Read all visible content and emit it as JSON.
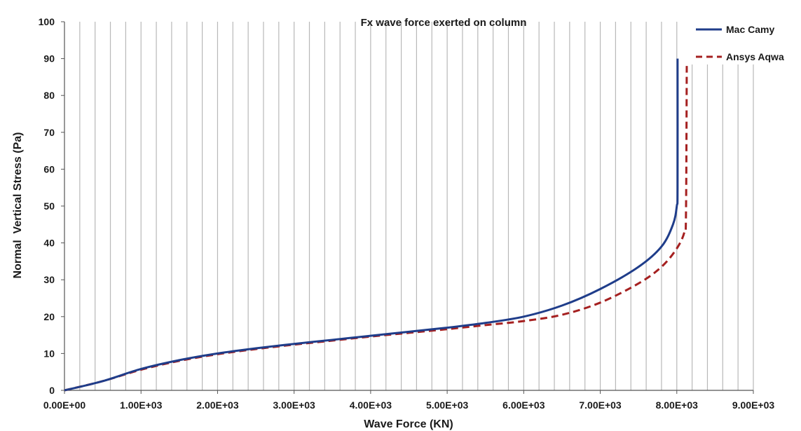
{
  "chart_data": {
    "type": "line",
    "title": "Fx wave force exerted on column",
    "xlabel": "Wave Force (KN)",
    "ylabel": "Normal  Vertical Stress (Pa)",
    "xlim": [
      0,
      9000
    ],
    "ylim": [
      0,
      100
    ],
    "x_ticks": [
      "0.00E+00",
      "1.00E+03",
      "2.00E+03",
      "3.00E+03",
      "4.00E+03",
      "5.00E+03",
      "6.00E+03",
      "7.00E+03",
      "8.00E+03",
      "9.00E+03"
    ],
    "x_tick_values": [
      0,
      1000,
      2000,
      3000,
      4000,
      5000,
      6000,
      7000,
      8000,
      9000
    ],
    "y_ticks": [
      "0",
      "10",
      "20",
      "30",
      "40",
      "50",
      "60",
      "70",
      "80",
      "90",
      "100"
    ],
    "y_tick_values": [
      0,
      10,
      20,
      30,
      40,
      50,
      60,
      70,
      80,
      90,
      100
    ],
    "vertical_grid_step": 200,
    "grid": "vertical",
    "legend_position": "top-right",
    "series": [
      {
        "name": "Mac Camy",
        "color": "#1f3d8a",
        "style": "solid",
        "points": [
          [
            0,
            0
          ],
          [
            500,
            2.5
          ],
          [
            1000,
            5.8
          ],
          [
            1500,
            8.2
          ],
          [
            2000,
            10
          ],
          [
            2500,
            11.4
          ],
          [
            3000,
            12.6
          ],
          [
            3500,
            13.7
          ],
          [
            4000,
            14.8
          ],
          [
            4500,
            15.9
          ],
          [
            5000,
            17
          ],
          [
            5500,
            18.3
          ],
          [
            6000,
            20
          ],
          [
            6500,
            23
          ],
          [
            7000,
            27.5
          ],
          [
            7500,
            33.5
          ],
          [
            7800,
            39
          ],
          [
            7950,
            45
          ],
          [
            8000,
            50
          ],
          [
            8010,
            55
          ],
          [
            8010,
            90
          ]
        ]
      },
      {
        "name": "Ansys Aqwa",
        "color": "#a52020",
        "style": "dashed",
        "points": [
          [
            0,
            0
          ],
          [
            500,
            2.5
          ],
          [
            1000,
            5.6
          ],
          [
            1500,
            8
          ],
          [
            2000,
            9.8
          ],
          [
            2500,
            11.2
          ],
          [
            3000,
            12.4
          ],
          [
            3500,
            13.5
          ],
          [
            4000,
            14.6
          ],
          [
            4500,
            15.6
          ],
          [
            5000,
            16.6
          ],
          [
            5500,
            17.7
          ],
          [
            6000,
            18.8
          ],
          [
            6500,
            20.5
          ],
          [
            7000,
            23.8
          ],
          [
            7500,
            29
          ],
          [
            7800,
            33.5
          ],
          [
            8000,
            38.5
          ],
          [
            8100,
            43
          ],
          [
            8120,
            48
          ],
          [
            8130,
            88
          ]
        ]
      }
    ]
  }
}
